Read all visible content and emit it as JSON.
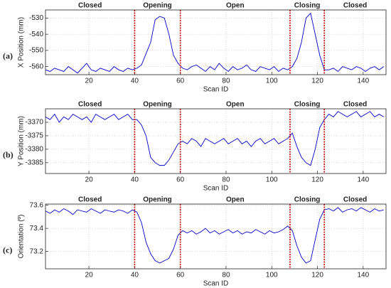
{
  "chart_data": [
    {
      "type": "line",
      "panel_label": "(a)",
      "x_label": "Scan ID",
      "y_label": "X Position (mm)",
      "phases": [
        "Closed",
        "Opening",
        "Open",
        "Closing",
        "Closed"
      ],
      "boundaries": [
        40,
        60,
        108,
        123
      ],
      "boundary_color": "#cc0000",
      "color": "#0000cc",
      "grid": true,
      "xlim": [
        1,
        150
      ],
      "xticks": [
        20,
        40,
        60,
        80,
        100,
        120,
        140
      ],
      "ylim": [
        -565,
        -525
      ],
      "yticks": [
        -560,
        -550,
        -540,
        -530
      ],
      "x": [
        1,
        3,
        5,
        7,
        9,
        11,
        13,
        15,
        17,
        19,
        21,
        23,
        25,
        27,
        29,
        31,
        33,
        35,
        37,
        39,
        41,
        43,
        45,
        47,
        49,
        51,
        53,
        55,
        57,
        59,
        61,
        63,
        65,
        67,
        69,
        71,
        73,
        75,
        77,
        79,
        81,
        83,
        85,
        87,
        89,
        91,
        93,
        95,
        97,
        99,
        101,
        103,
        105,
        107,
        109,
        111,
        113,
        115,
        117,
        119,
        121,
        123,
        125,
        127,
        129,
        131,
        133,
        135,
        137,
        139,
        141,
        143,
        145,
        147,
        149
      ],
      "values": [
        -562,
        -563,
        -561,
        -562,
        -563,
        -560,
        -562,
        -564,
        -561,
        -558,
        -562,
        -563,
        -561,
        -562,
        -563,
        -560,
        -562,
        -563,
        -561,
        -562,
        -561,
        -559,
        -552,
        -545,
        -531,
        -529,
        -530,
        -540,
        -553,
        -558,
        -561,
        -562,
        -560,
        -559,
        -561,
        -563,
        -560,
        -562,
        -558,
        -561,
        -563,
        -560,
        -562,
        -561,
        -559,
        -562,
        -563,
        -560,
        -561,
        -562,
        -560,
        -563,
        -561,
        -562,
        -560,
        -555,
        -545,
        -530,
        -527,
        -540,
        -553,
        -562,
        -562,
        -561,
        -563,
        -560,
        -561,
        -562,
        -560,
        -561,
        -563,
        -561,
        -560,
        -562,
        -560
      ]
    },
    {
      "type": "line",
      "panel_label": "(b)",
      "x_label": "Scan ID",
      "y_label": "Y Position (mm)",
      "phases": [
        "Closed",
        "Opening",
        "Open",
        "Closing",
        "Closed"
      ],
      "boundaries": [
        40,
        60,
        108,
        123
      ],
      "boundary_color": "#cc0000",
      "color": "#0000cc",
      "grid": true,
      "xlim": [
        1,
        150
      ],
      "xticks": [
        20,
        40,
        60,
        80,
        100,
        120,
        140
      ],
      "ylim": [
        -3389,
        -3365
      ],
      "yticks": [
        -3385,
        -3380,
        -3375,
        -3370
      ],
      "x": [
        1,
        3,
        5,
        7,
        9,
        11,
        13,
        15,
        17,
        19,
        21,
        23,
        25,
        27,
        29,
        31,
        33,
        35,
        37,
        39,
        41,
        43,
        45,
        47,
        49,
        51,
        53,
        55,
        57,
        59,
        61,
        63,
        65,
        67,
        69,
        71,
        73,
        75,
        77,
        79,
        81,
        83,
        85,
        87,
        89,
        91,
        93,
        95,
        97,
        99,
        101,
        103,
        105,
        107,
        109,
        111,
        113,
        115,
        117,
        119,
        121,
        123,
        125,
        127,
        129,
        131,
        133,
        135,
        137,
        139,
        141,
        143,
        145,
        147,
        149
      ],
      "values": [
        -3368,
        -3369,
        -3367,
        -3370,
        -3368,
        -3369,
        -3367,
        -3368,
        -3369,
        -3368,
        -3370,
        -3367,
        -3368,
        -3369,
        -3368,
        -3367,
        -3369,
        -3368,
        -3367,
        -3369,
        -3369,
        -3371,
        -3375,
        -3383,
        -3385,
        -3386,
        -3386,
        -3384,
        -3381,
        -3378,
        -3377,
        -3378,
        -3376,
        -3377,
        -3379,
        -3376,
        -3377,
        -3378,
        -3377,
        -3376,
        -3378,
        -3377,
        -3376,
        -3378,
        -3377,
        -3379,
        -3377,
        -3376,
        -3378,
        -3377,
        -3376,
        -3378,
        -3377,
        -3376,
        -3374,
        -3379,
        -3383,
        -3385,
        -3386,
        -3380,
        -3372,
        -3369,
        -3367,
        -3368,
        -3366,
        -3367,
        -3368,
        -3367,
        -3366,
        -3368,
        -3367,
        -3366,
        -3368,
        -3367,
        -3368
      ]
    },
    {
      "type": "line",
      "panel_label": "(c)",
      "x_label": "Scan ID",
      "y_label": "Orientation (º)",
      "phases": [
        "Closed",
        "Opening",
        "Open",
        "Closing",
        "Closed"
      ],
      "boundaries": [
        40,
        60,
        108,
        123
      ],
      "boundary_color": "#cc0000",
      "color": "#0000cc",
      "grid": true,
      "xlim": [
        1,
        150
      ],
      "xticks": [
        20,
        40,
        60,
        80,
        100,
        120,
        140
      ],
      "ylim": [
        73.05,
        73.61
      ],
      "yticks": [
        73.2,
        73.4,
        73.6
      ],
      "x": [
        1,
        3,
        5,
        7,
        9,
        11,
        13,
        15,
        17,
        19,
        21,
        23,
        25,
        27,
        29,
        31,
        33,
        35,
        37,
        39,
        41,
        43,
        45,
        47,
        49,
        51,
        53,
        55,
        57,
        59,
        61,
        63,
        65,
        67,
        69,
        71,
        73,
        75,
        77,
        79,
        81,
        83,
        85,
        87,
        89,
        91,
        93,
        95,
        97,
        99,
        101,
        103,
        105,
        107,
        109,
        111,
        113,
        115,
        117,
        119,
        121,
        123,
        125,
        127,
        129,
        131,
        133,
        135,
        137,
        139,
        141,
        143,
        145,
        147,
        149
      ],
      "values": [
        73.55,
        73.53,
        73.56,
        73.54,
        73.57,
        73.55,
        73.52,
        73.56,
        73.55,
        73.54,
        73.57,
        73.55,
        73.53,
        73.56,
        73.55,
        73.54,
        73.56,
        73.55,
        73.53,
        73.56,
        73.54,
        73.45,
        73.28,
        73.18,
        73.12,
        73.1,
        73.12,
        73.14,
        73.22,
        73.34,
        73.38,
        73.36,
        73.38,
        73.35,
        73.37,
        73.4,
        73.36,
        73.38,
        73.35,
        73.37,
        73.39,
        73.36,
        73.38,
        73.35,
        73.37,
        73.36,
        73.39,
        73.37,
        73.35,
        73.38,
        73.36,
        73.37,
        73.39,
        73.42,
        73.38,
        73.25,
        73.15,
        73.1,
        73.12,
        73.3,
        73.48,
        73.56,
        73.57,
        73.55,
        73.58,
        73.54,
        73.56,
        73.57,
        73.55,
        73.58,
        73.56,
        73.54,
        73.57,
        73.55,
        73.56
      ]
    }
  ]
}
